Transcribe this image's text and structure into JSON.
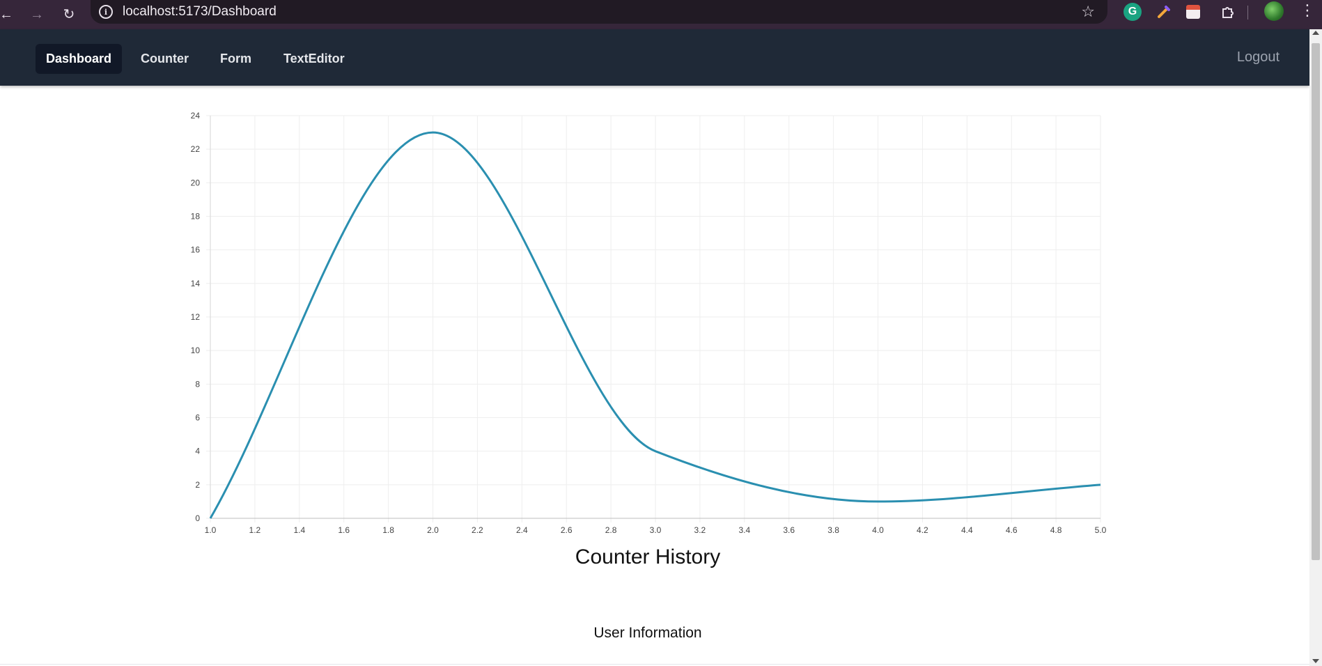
{
  "browser": {
    "url": "localhost:5173/Dashboard",
    "back_icon": "arrow-left-icon",
    "forward_icon": "arrow-right-icon",
    "reload_icon": "reload-icon",
    "info_icon": "info-icon",
    "bookmark_icon": "star-icon",
    "extensions": [
      "grammarly-icon",
      "color-picker-icon",
      "calendar-icon",
      "puzzle-icon"
    ],
    "profile_icon": "avatar",
    "menu_icon": "kebab-menu-icon"
  },
  "nav": {
    "items": [
      {
        "label": "Dashboard",
        "active": true
      },
      {
        "label": "Counter",
        "active": false
      },
      {
        "label": "Form",
        "active": false
      },
      {
        "label": "TextEditor",
        "active": false
      }
    ],
    "logout_label": "Logout"
  },
  "chart_title": "Counter History",
  "section_title": "User Information",
  "colors": {
    "line": "#2a8fb0",
    "nav_bg": "#1f2937",
    "nav_active_bg": "#111827",
    "grid": "#eeeeee",
    "axis_text": "#444444"
  },
  "chart_data": {
    "type": "line",
    "title": "Counter History",
    "xlabel": "",
    "ylabel": "",
    "x": [
      1,
      2,
      3,
      4,
      5
    ],
    "series": [
      {
        "values": [
          0,
          23,
          4,
          1,
          2
        ]
      }
    ],
    "xlim": [
      1.0,
      5.0
    ],
    "ylim": [
      0,
      24
    ],
    "xticks": [
      "1.0",
      "1.2",
      "1.4",
      "1.6",
      "1.8",
      "2.0",
      "2.2",
      "2.4",
      "2.6",
      "2.8",
      "3.0",
      "3.2",
      "3.4",
      "3.6",
      "3.8",
      "4.0",
      "4.2",
      "4.4",
      "4.6",
      "4.8",
      "5.0"
    ],
    "yticks": [
      "0",
      "2",
      "4",
      "6",
      "8",
      "10",
      "12",
      "14",
      "16",
      "18",
      "20",
      "22",
      "24"
    ],
    "grid": true,
    "curve": "smooth"
  }
}
